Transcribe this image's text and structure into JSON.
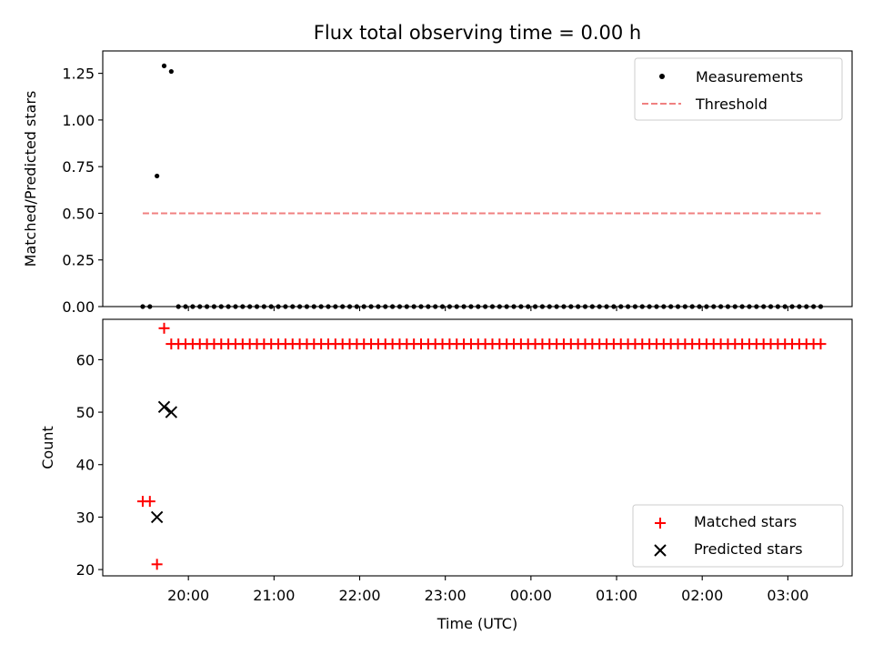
{
  "chart_data": [
    {
      "type": "scatter",
      "title": "Flux total observing time = 0.00 h",
      "ylabel": "Matched/Predicted stars",
      "xlabel": "",
      "ylim": [
        0,
        1.37
      ],
      "yticks": [
        "0.00",
        "0.25",
        "0.50",
        "0.75",
        "1.00",
        "1.25"
      ],
      "yticks_values": [
        0,
        0.25,
        0.5,
        0.75,
        1.0,
        1.25
      ],
      "legend": {
        "placement": "top-right",
        "entries": [
          "Measurements",
          "Threshold"
        ]
      },
      "series": [
        {
          "name": "Measurements",
          "color": "#000000",
          "marker": "dot",
          "points": [
            [
              "19:28",
              0
            ],
            [
              "19:33",
              0
            ],
            [
              "19:38",
              0.7
            ],
            [
              "19:43",
              1.29
            ],
            [
              "19:48",
              1.26
            ],
            [
              "19:53",
              0
            ],
            [
              "19:58",
              0
            ],
            [
              "20:03",
              0
            ],
            [
              "20:08",
              0
            ],
            [
              "20:13",
              0
            ],
            [
              "20:18",
              0
            ],
            [
              "20:23",
              0
            ],
            [
              "20:28",
              0
            ],
            [
              "20:33",
              0
            ],
            [
              "20:38",
              0
            ],
            [
              "20:43",
              0
            ],
            [
              "20:48",
              0
            ],
            [
              "20:53",
              0
            ],
            [
              "20:58",
              0
            ],
            [
              "21:03",
              0
            ],
            [
              "21:08",
              0
            ],
            [
              "21:13",
              0
            ],
            [
              "21:18",
              0
            ],
            [
              "21:23",
              0
            ],
            [
              "21:28",
              0
            ],
            [
              "21:33",
              0
            ],
            [
              "21:38",
              0
            ],
            [
              "21:43",
              0
            ],
            [
              "21:48",
              0
            ],
            [
              "21:53",
              0
            ],
            [
              "21:58",
              0
            ],
            [
              "22:03",
              0
            ],
            [
              "22:08",
              0
            ],
            [
              "22:13",
              0
            ],
            [
              "22:18",
              0
            ],
            [
              "22:23",
              0
            ],
            [
              "22:28",
              0
            ],
            [
              "22:33",
              0
            ],
            [
              "22:38",
              0
            ],
            [
              "22:43",
              0
            ],
            [
              "22:48",
              0
            ],
            [
              "22:53",
              0
            ],
            [
              "22:58",
              0
            ],
            [
              "23:03",
              0
            ],
            [
              "23:08",
              0
            ],
            [
              "23:13",
              0
            ],
            [
              "23:18",
              0
            ],
            [
              "23:23",
              0
            ],
            [
              "23:28",
              0
            ],
            [
              "23:33",
              0
            ],
            [
              "23:38",
              0
            ],
            [
              "23:43",
              0
            ],
            [
              "23:48",
              0
            ],
            [
              "23:53",
              0
            ],
            [
              "23:58",
              0
            ],
            [
              "00:03",
              0
            ],
            [
              "00:08",
              0
            ],
            [
              "00:13",
              0
            ],
            [
              "00:18",
              0
            ],
            [
              "00:23",
              0
            ],
            [
              "00:28",
              0
            ],
            [
              "00:33",
              0
            ],
            [
              "00:38",
              0
            ],
            [
              "00:43",
              0
            ],
            [
              "00:48",
              0
            ],
            [
              "00:53",
              0
            ],
            [
              "00:58",
              0
            ],
            [
              "01:03",
              0
            ],
            [
              "01:08",
              0
            ],
            [
              "01:13",
              0
            ],
            [
              "01:18",
              0
            ],
            [
              "01:23",
              0
            ],
            [
              "01:28",
              0
            ],
            [
              "01:33",
              0
            ],
            [
              "01:38",
              0
            ],
            [
              "01:43",
              0
            ],
            [
              "01:48",
              0
            ],
            [
              "01:53",
              0
            ],
            [
              "01:58",
              0
            ],
            [
              "02:03",
              0
            ],
            [
              "02:08",
              0
            ],
            [
              "02:13",
              0
            ],
            [
              "02:18",
              0
            ],
            [
              "02:23",
              0
            ],
            [
              "02:28",
              0
            ],
            [
              "02:33",
              0
            ],
            [
              "02:38",
              0
            ],
            [
              "02:43",
              0
            ],
            [
              "02:48",
              0
            ],
            [
              "02:53",
              0
            ],
            [
              "02:58",
              0
            ],
            [
              "03:03",
              0
            ],
            [
              "03:08",
              0
            ],
            [
              "03:13",
              0
            ],
            [
              "03:18",
              0
            ],
            [
              "03:23",
              0
            ]
          ]
        },
        {
          "name": "Threshold",
          "type": "line",
          "style": "dashed",
          "color": "#f08080",
          "value": 0.5,
          "x_range": [
            "19:28",
            "03:23"
          ]
        }
      ]
    },
    {
      "type": "scatter",
      "title": "",
      "ylabel": "Count",
      "xlabel": "Time (UTC)",
      "ylim": [
        18.8,
        67.7
      ],
      "yticks": [
        "20",
        "30",
        "40",
        "50",
        "60"
      ],
      "yticks_values": [
        20,
        30,
        40,
        50,
        60
      ],
      "xticks": [
        "20:00",
        "21:00",
        "22:00",
        "23:00",
        "00:00",
        "01:00",
        "02:00",
        "03:00"
      ],
      "xlim": [
        "19:00",
        "03:45"
      ],
      "legend": {
        "placement": "bottom-right",
        "entries": [
          "Matched stars",
          "Predicted stars"
        ]
      },
      "series": [
        {
          "name": "Matched stars",
          "color": "#ff0000",
          "marker": "plus",
          "points": [
            [
              "19:28",
              33
            ],
            [
              "19:33",
              33
            ],
            [
              "19:38",
              21
            ],
            [
              "19:43",
              66
            ],
            [
              "19:48",
              63
            ],
            [
              "19:53",
              63
            ],
            [
              "19:58",
              63
            ],
            [
              "20:03",
              63
            ],
            [
              "20:08",
              63
            ],
            [
              "20:13",
              63
            ],
            [
              "20:18",
              63
            ],
            [
              "20:23",
              63
            ],
            [
              "20:28",
              63
            ],
            [
              "20:33",
              63
            ],
            [
              "20:38",
              63
            ],
            [
              "20:43",
              63
            ],
            [
              "20:48",
              63
            ],
            [
              "20:53",
              63
            ],
            [
              "20:58",
              63
            ],
            [
              "21:03",
              63
            ],
            [
              "21:08",
              63
            ],
            [
              "21:13",
              63
            ],
            [
              "21:18",
              63
            ],
            [
              "21:23",
              63
            ],
            [
              "21:28",
              63
            ],
            [
              "21:33",
              63
            ],
            [
              "21:38",
              63
            ],
            [
              "21:43",
              63
            ],
            [
              "21:48",
              63
            ],
            [
              "21:53",
              63
            ],
            [
              "21:58",
              63
            ],
            [
              "22:03",
              63
            ],
            [
              "22:08",
              63
            ],
            [
              "22:13",
              63
            ],
            [
              "22:18",
              63
            ],
            [
              "22:23",
              63
            ],
            [
              "22:28",
              63
            ],
            [
              "22:33",
              63
            ],
            [
              "22:38",
              63
            ],
            [
              "22:43",
              63
            ],
            [
              "22:48",
              63
            ],
            [
              "22:53",
              63
            ],
            [
              "22:58",
              63
            ],
            [
              "23:03",
              63
            ],
            [
              "23:08",
              63
            ],
            [
              "23:13",
              63
            ],
            [
              "23:18",
              63
            ],
            [
              "23:23",
              63
            ],
            [
              "23:28",
              63
            ],
            [
              "23:33",
              63
            ],
            [
              "23:38",
              63
            ],
            [
              "23:43",
              63
            ],
            [
              "23:48",
              63
            ],
            [
              "23:53",
              63
            ],
            [
              "23:58",
              63
            ],
            [
              "00:03",
              63
            ],
            [
              "00:08",
              63
            ],
            [
              "00:13",
              63
            ],
            [
              "00:18",
              63
            ],
            [
              "00:23",
              63
            ],
            [
              "00:28",
              63
            ],
            [
              "00:33",
              63
            ],
            [
              "00:38",
              63
            ],
            [
              "00:43",
              63
            ],
            [
              "00:48",
              63
            ],
            [
              "00:53",
              63
            ],
            [
              "00:58",
              63
            ],
            [
              "01:03",
              63
            ],
            [
              "01:08",
              63
            ],
            [
              "01:13",
              63
            ],
            [
              "01:18",
              63
            ],
            [
              "01:23",
              63
            ],
            [
              "01:28",
              63
            ],
            [
              "01:33",
              63
            ],
            [
              "01:38",
              63
            ],
            [
              "01:43",
              63
            ],
            [
              "01:48",
              63
            ],
            [
              "01:53",
              63
            ],
            [
              "01:58",
              63
            ],
            [
              "02:03",
              63
            ],
            [
              "02:08",
              63
            ],
            [
              "02:13",
              63
            ],
            [
              "02:18",
              63
            ],
            [
              "02:23",
              63
            ],
            [
              "02:28",
              63
            ],
            [
              "02:33",
              63
            ],
            [
              "02:38",
              63
            ],
            [
              "02:43",
              63
            ],
            [
              "02:48",
              63
            ],
            [
              "02:53",
              63
            ],
            [
              "02:58",
              63
            ],
            [
              "03:03",
              63
            ],
            [
              "03:08",
              63
            ],
            [
              "03:13",
              63
            ],
            [
              "03:18",
              63
            ],
            [
              "03:23",
              63
            ]
          ]
        },
        {
          "name": "Predicted stars",
          "color": "#000000",
          "marker": "x",
          "points": [
            [
              "19:38",
              30
            ],
            [
              "19:43",
              51
            ],
            [
              "19:48",
              50
            ]
          ]
        }
      ]
    }
  ]
}
